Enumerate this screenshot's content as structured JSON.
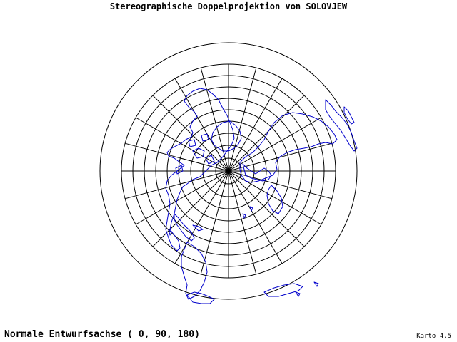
{
  "header": {
    "title": "Stereographische Doppelprojektion von SOLOVJEW"
  },
  "footer": {
    "axis_label": "Normale Entwurfsachse ( 0, 90, 180)",
    "version": "Karto 4.5"
  },
  "map": {
    "projection": "stereographic double projection (Solovjew)",
    "center": {
      "lon": 0,
      "lat": 90,
      "rotation": 180
    },
    "graticule_color": "#000000",
    "coastline_color": "#0000cc",
    "parallel_step_deg": 10,
    "meridian_step_deg": 15,
    "outer_boundary_lat": -30
  }
}
